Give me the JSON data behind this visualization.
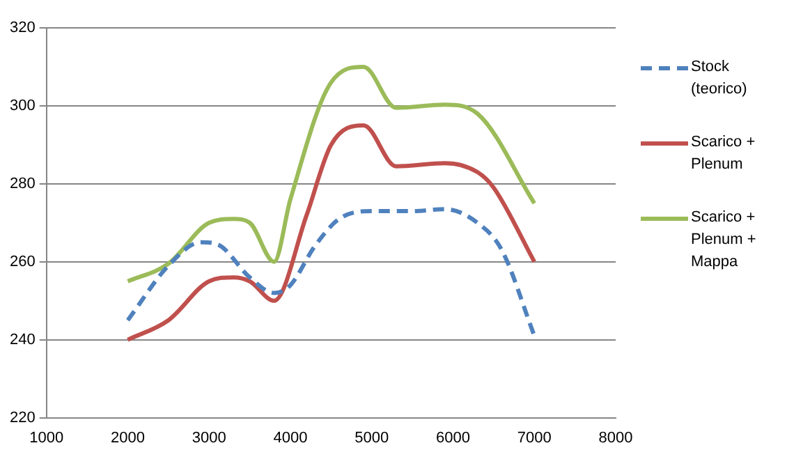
{
  "chart_data": {
    "type": "line",
    "xlim": [
      1000,
      8000
    ],
    "xticks": [
      1000,
      2000,
      3000,
      4000,
      5000,
      6000,
      7000,
      8000
    ],
    "ylim": [
      220,
      320
    ],
    "yticks": [
      220,
      240,
      260,
      280,
      300,
      320
    ],
    "grid": "y",
    "legend": "right",
    "marker": "none",
    "series": [
      {
        "name": "Stock (teorico)",
        "color": "#4f81bd",
        "line_style": "dashed",
        "x": [
          2000,
          2500,
          2900,
          3100,
          3500,
          3800,
          4000,
          4300,
          4600,
          5000,
          5500,
          5900,
          6300,
          6600,
          7000
        ],
        "values": [
          245,
          259,
          265,
          264.5,
          256,
          252,
          254,
          264,
          271,
          273,
          273,
          273.5,
          270,
          263,
          241
        ]
      },
      {
        "name": "Scarico + Plenum",
        "color": "#c0504d",
        "line_style": "solid",
        "x": [
          2000,
          2500,
          3000,
          3300,
          3500,
          3800,
          4200,
          4500,
          4900,
          5300,
          5900,
          6300,
          6500,
          7000
        ],
        "values": [
          240,
          245,
          255,
          256,
          255,
          250,
          272,
          290,
          295,
          284.5,
          285.3,
          283,
          279,
          260
        ]
      },
      {
        "name": "Scarico + Plenum + Mappa",
        "color": "#9bbb59",
        "line_style": "solid",
        "x": [
          2000,
          2500,
          3000,
          3300,
          3500,
          3800,
          4000,
          4500,
          4900,
          5300,
          5900,
          6300,
          7000
        ],
        "values": [
          255,
          259.5,
          270,
          271,
          270,
          260,
          276,
          306,
          310,
          299.5,
          300.3,
          298,
          275
        ]
      }
    ]
  }
}
